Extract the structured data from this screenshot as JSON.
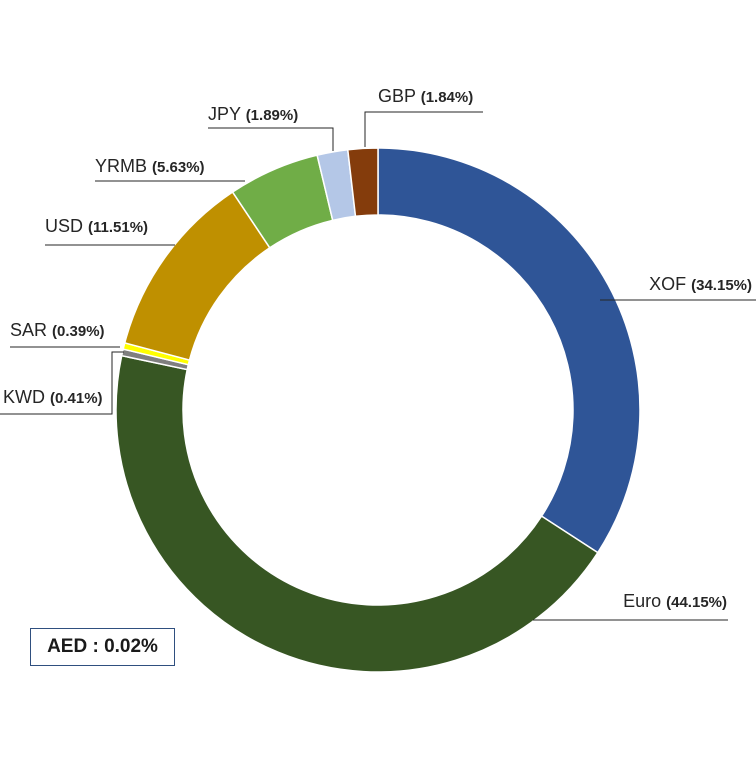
{
  "chart_data": {
    "type": "pie",
    "variant": "donut",
    "start_angle_deg": 0,
    "direction": "clockwise",
    "slices": [
      {
        "name": "XOF",
        "value": 34.15,
        "label": "(34.15%)",
        "color": "#2f5597"
      },
      {
        "name": "Euro",
        "value": 44.15,
        "label": "(44.15%)",
        "color": "#375623"
      },
      {
        "name": "KWD",
        "value": 0.41,
        "label": "(0.41%)",
        "color": "#7f7f7f"
      },
      {
        "name": "SAR",
        "value": 0.39,
        "label": "(0.39%)",
        "color": "#ffff00"
      },
      {
        "name": "USD",
        "value": 11.51,
        "label": "(11.51%)",
        "color": "#bf9000"
      },
      {
        "name": "YRMB",
        "value": 5.63,
        "label": "(5.63%)",
        "color": "#70ad47"
      },
      {
        "name": "JPY",
        "value": 1.89,
        "label": "(1.89%)",
        "color": "#b4c7e7"
      },
      {
        "name": "GBP",
        "value": 1.84,
        "label": "(1.84%)",
        "color": "#843c0c"
      }
    ],
    "annotation": "AED : 0.02%",
    "legend": "none"
  }
}
